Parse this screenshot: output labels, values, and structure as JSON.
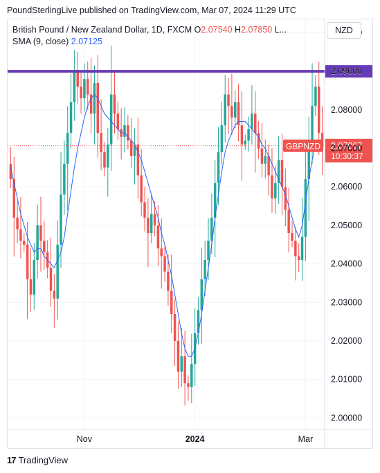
{
  "header": {
    "published": "PoundSterlingLive published on TradingView.com, Mar 07, 2024 11:29 UTC"
  },
  "legend": {
    "line1_prefix": "British Pound / New Zealand Dollar, 1D, FXCM",
    "open_label": "O",
    "open_value": "2.07540",
    "high_label": "H",
    "high_value": "2.07850",
    "more": "L...",
    "sma_label": "SMA (9, close)",
    "sma_value": "2.07125"
  },
  "currency_button": "NZD",
  "footer": {
    "brand": "TradingView",
    "logo_text": "17"
  },
  "colors": {
    "up": "#26a69a",
    "down": "#ef5350",
    "sma": "#2962ff",
    "resistance": "#673ab7",
    "grid": "#f0f3fa"
  },
  "chart_data": {
    "type": "candlestick",
    "symbol": "GBPNZD",
    "timeframe": "1D",
    "ylim": [
      1.997,
      2.1035
    ],
    "y_ticks": [
      "2.10000",
      "2.09000",
      "2.08000",
      "2.07000",
      "2.06000",
      "2.05000",
      "2.04000",
      "2.03000",
      "2.02000",
      "2.01000",
      "2.00000"
    ],
    "x_ticks": [
      {
        "label": "Nov",
        "index": 22
      },
      {
        "label": "2024",
        "index": 55
      },
      {
        "label": "Mar",
        "index": 88
      }
    ],
    "resistance": {
      "value": 2.09,
      "label": "2.09000"
    },
    "last_price": {
      "value": 2.07067,
      "label": "2.07067",
      "symbol_label": "GBPNZD",
      "countdown": "10:30:37"
    },
    "close": [
      2.062,
      2.052,
      2.049,
      2.046,
      2.045,
      2.036,
      2.032,
      2.041,
      2.05,
      2.046,
      2.043,
      2.039,
      2.033,
      2.031,
      2.045,
      2.058,
      2.066,
      2.074,
      2.082,
      2.09,
      2.086,
      2.083,
      2.088,
      2.084,
      2.079,
      2.087,
      2.074,
      2.069,
      2.065,
      2.071,
      2.084,
      2.079,
      2.075,
      2.073,
      2.076,
      2.072,
      2.068,
      2.071,
      2.063,
      2.056,
      2.052,
      2.048,
      2.053,
      2.05,
      2.044,
      2.042,
      2.038,
      2.033,
      2.027,
      2.02,
      2.012,
      2.016,
      2.009,
      2.008,
      2.014,
      2.022,
      2.028,
      2.036,
      2.041,
      2.046,
      2.052,
      2.061,
      2.069,
      2.076,
      2.084,
      2.081,
      2.078,
      2.082,
      2.076,
      2.071,
      2.072,
      2.075,
      2.079,
      2.074,
      2.07,
      2.066,
      2.068,
      2.063,
      2.057,
      2.061,
      2.067,
      2.06,
      2.054,
      2.048,
      2.046,
      2.042,
      2.041,
      2.047,
      2.062,
      2.072,
      2.081,
      2.086,
      2.074,
      2.07067
    ],
    "sma": [
      2.065,
      2.061,
      2.057,
      2.053,
      2.05,
      2.047,
      2.045,
      2.043,
      2.044,
      2.044,
      2.042,
      2.041,
      2.04,
      2.039,
      2.041,
      2.043,
      2.047,
      2.053,
      2.059,
      2.065,
      2.07,
      2.074,
      2.078,
      2.081,
      2.083,
      2.084,
      2.083,
      2.081,
      2.079,
      2.078,
      2.077,
      2.076,
      2.075,
      2.074,
      2.074,
      2.073,
      2.072,
      2.071,
      2.069,
      2.067,
      2.064,
      2.061,
      2.058,
      2.055,
      2.052,
      2.048,
      2.045,
      2.041,
      2.037,
      2.032,
      2.027,
      2.022,
      2.018,
      2.016,
      2.016,
      2.018,
      2.022,
      2.027,
      2.033,
      2.039,
      2.045,
      2.052,
      2.058,
      2.064,
      2.069,
      2.072,
      2.074,
      2.076,
      2.077,
      2.077,
      2.077,
      2.076,
      2.075,
      2.074,
      2.073,
      2.071,
      2.07,
      2.068,
      2.066,
      2.064,
      2.062,
      2.06,
      2.058,
      2.055,
      2.052,
      2.049,
      2.047,
      2.05,
      2.056,
      2.062,
      2.067,
      2.071,
      2.072,
      2.07125
    ]
  }
}
